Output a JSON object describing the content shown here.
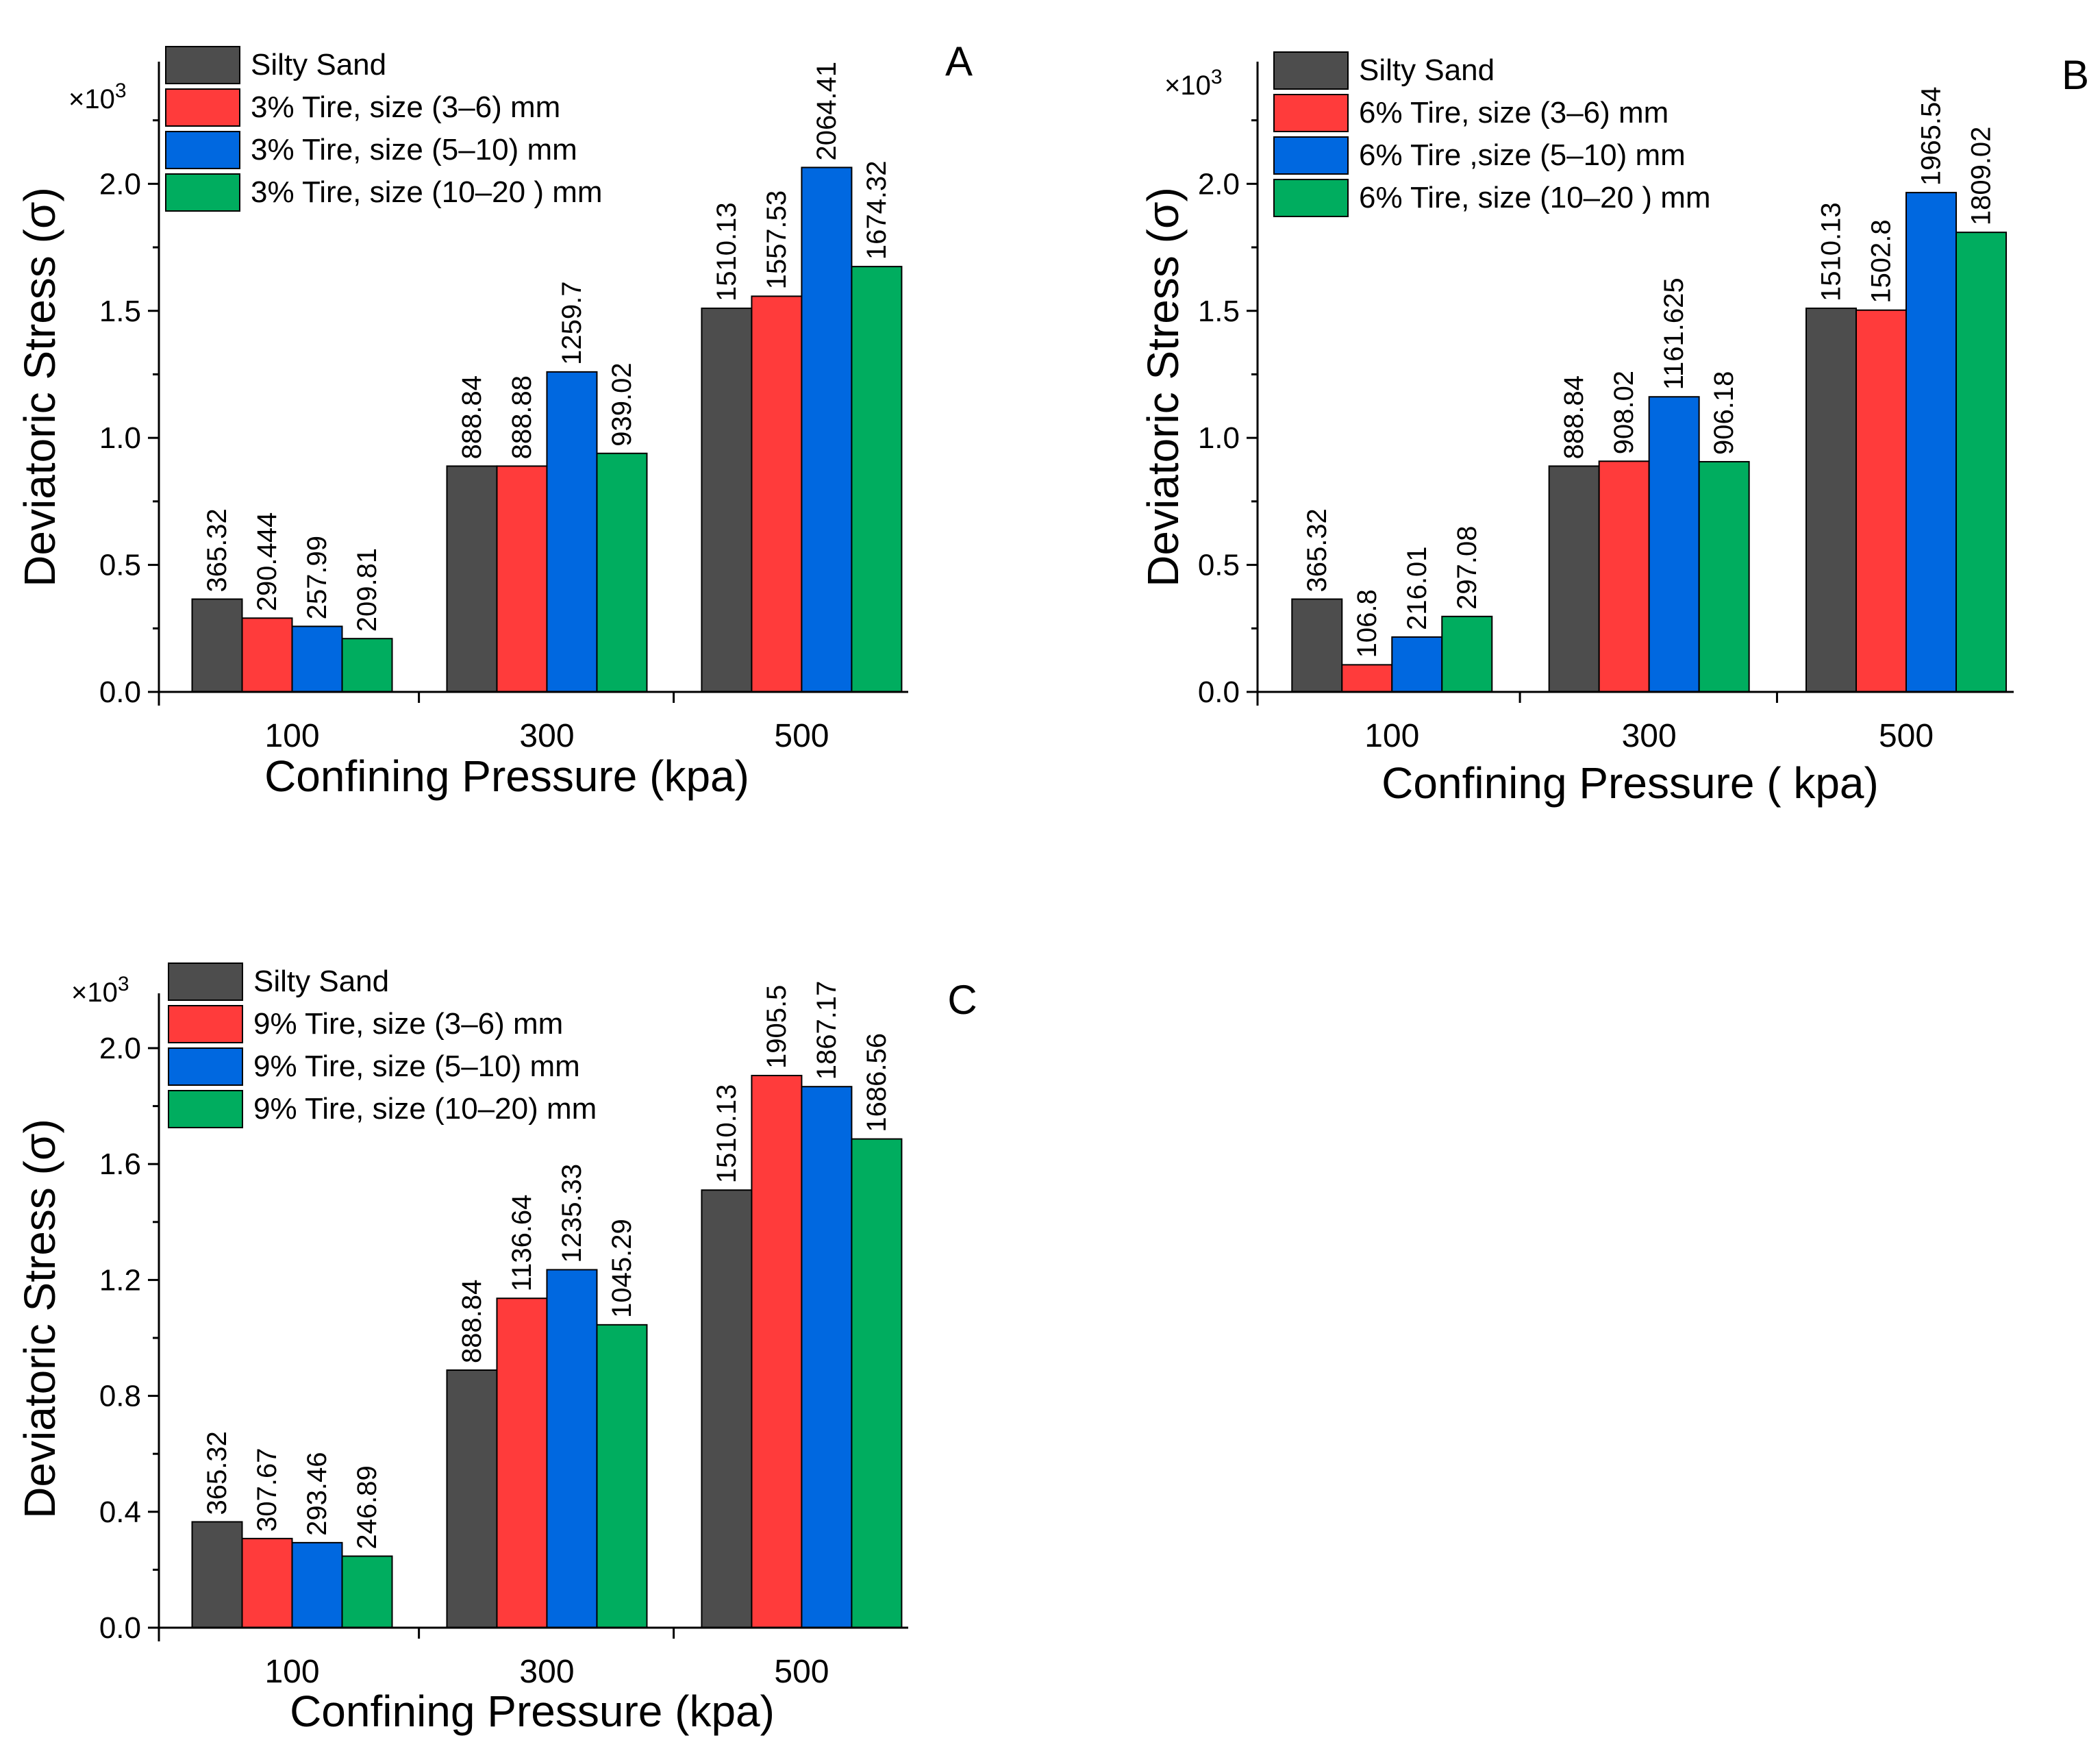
{
  "figure": {
    "colors": [
      "#4d4d4d",
      "#ff3b3b",
      "#0068e0",
      "#00ad5f"
    ]
  },
  "chart_data": [
    {
      "panel": "A",
      "type": "bar",
      "categories": [
        "100",
        "300",
        "500"
      ],
      "xlabel": "Confining Pressure (kpa)",
      "ylabel": "Deviatoric Stress (σ)",
      "multiplier": "×10",
      "multiplier_exp": "3",
      "ylim": [
        0,
        2.4
      ],
      "yticks": [
        0,
        0.5,
        1.0,
        1.5,
        2.0
      ],
      "ytick_labels": [
        "0.0",
        "0.5",
        "1.0",
        "1.5",
        "2.0"
      ],
      "series": [
        {
          "name": "Silty Sand",
          "values": [
            365.32,
            888.84,
            1510.13
          ],
          "labels": [
            "365.32",
            "888.84",
            "1510.13"
          ]
        },
        {
          "name": "3% Tire, size (3–6) mm",
          "values": [
            290.444,
            888.88,
            1557.53
          ],
          "labels": [
            "290.444",
            "888.88",
            "1557.53"
          ]
        },
        {
          "name": "3% Tire, size (5–10) mm",
          "values": [
            257.99,
            1259.7,
            2064.41
          ],
          "labels": [
            "257.99",
            "1259.7",
            "2064.41"
          ]
        },
        {
          "name": "3% Tire, size (10–20 ) mm",
          "values": [
            209.81,
            939.02,
            1674.32
          ],
          "labels": [
            "209.81",
            "939.02",
            "1674.32"
          ]
        }
      ]
    },
    {
      "panel": "B",
      "type": "bar",
      "categories": [
        "100",
        "300",
        "500"
      ],
      "xlabel": "Confining Pressure ( kpa)",
      "ylabel": "Deviatoric Stress (σ)",
      "multiplier": "×10",
      "multiplier_exp": "3",
      "ylim": [
        0,
        2.4
      ],
      "yticks": [
        0,
        0.5,
        1.0,
        1.5,
        2.0
      ],
      "ytick_labels": [
        "0.0",
        "0.5",
        "1.0",
        "1.5",
        "2.0"
      ],
      "series": [
        {
          "name": "Silty Sand",
          "values": [
            365.32,
            888.84,
            1510.13
          ],
          "labels": [
            "365.32",
            "888.84",
            "1510.13"
          ]
        },
        {
          "name": "6% Tire, size (3–6) mm",
          "values": [
            106.8,
            908.02,
            1502.8
          ],
          "labels": [
            "106.8",
            "908.02",
            "1502.8"
          ]
        },
        {
          "name": "6% Tire ,size (5–10) mm",
          "values": [
            216.01,
            1161.625,
            1965.54
          ],
          "labels": [
            "216.01",
            "1161.625",
            "1965.54"
          ]
        },
        {
          "name": "6% Tire, size (10–20 ) mm",
          "values": [
            297.08,
            906.18,
            1809.02
          ],
          "labels": [
            "297.08",
            "906.18",
            "1809.02"
          ]
        }
      ]
    },
    {
      "panel": "C",
      "type": "bar",
      "categories": [
        "100",
        "300",
        "500"
      ],
      "xlabel": "Confining Pressure (kpa)",
      "ylabel": "Deviatoric Stress (σ)",
      "multiplier": "×10",
      "multiplier_exp": "3",
      "ylim": [
        0,
        2.2
      ],
      "yticks": [
        0,
        0.4,
        0.8,
        1.2,
        1.6,
        2.0
      ],
      "ytick_labels": [
        "0.0",
        "0.4",
        "0.8",
        "1.2",
        "1.6",
        "2.0"
      ],
      "series": [
        {
          "name": "Silty Sand",
          "values": [
            365.32,
            888.84,
            1510.13
          ],
          "labels": [
            "365.32",
            "888.84",
            "1510.13"
          ]
        },
        {
          "name": "9% Tire, size (3–6) mm",
          "values": [
            307.67,
            1136.64,
            1905.5
          ],
          "labels": [
            "307.67",
            "1136.64",
            "1905.5"
          ]
        },
        {
          "name": "9% Tire, size (5–10) mm",
          "values": [
            293.46,
            1235.33,
            1867.17
          ],
          "labels": [
            "293.46",
            "1235.33",
            "1867.17"
          ]
        },
        {
          "name": "9% Tire, size (10–20) mm",
          "values": [
            246.89,
            1045.29,
            1686.56
          ],
          "labels": [
            "246.89",
            "1045.29",
            "1686.56"
          ]
        }
      ]
    }
  ]
}
